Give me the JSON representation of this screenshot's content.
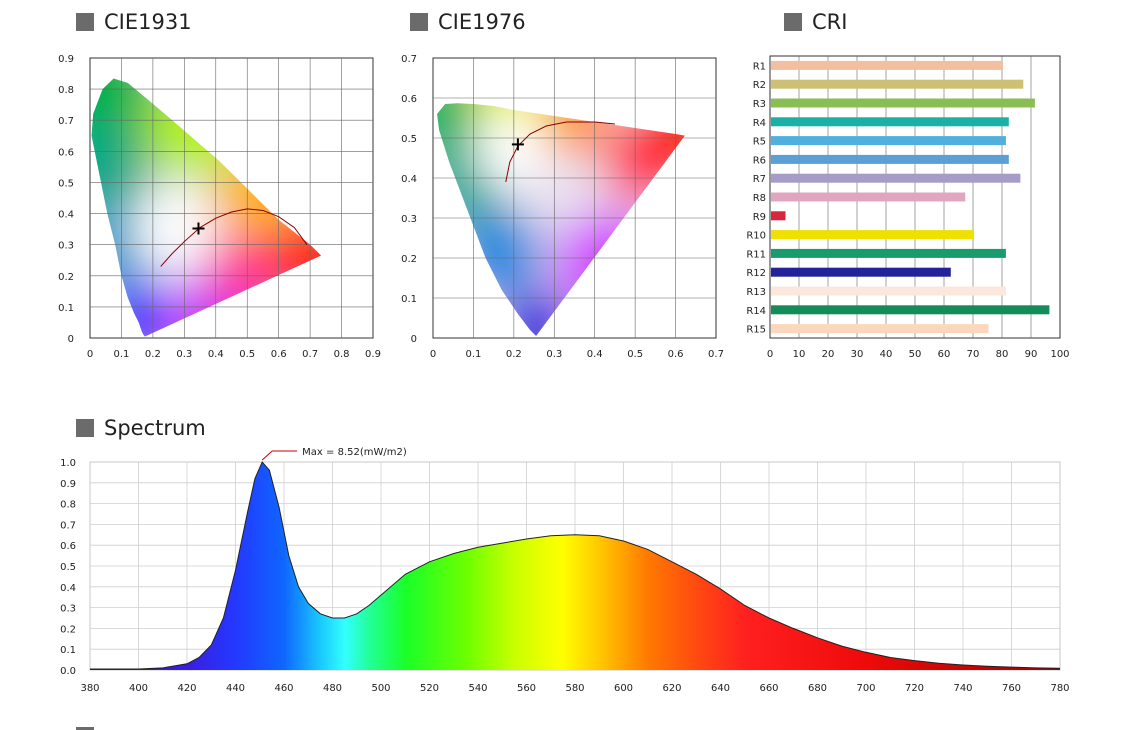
{
  "sections": {
    "cie1931": "CIE1931",
    "cie1976": "CIE1976",
    "cri": "CRI",
    "spectrum": "Spectrum"
  },
  "chart_data": [
    {
      "type": "scatter",
      "name": "CIE1931",
      "xlim": [
        0,
        0.9
      ],
      "ylim": [
        0,
        0.9
      ],
      "xticks": [
        "0",
        "0.1",
        "0.2",
        "0.3",
        "0.4",
        "0.5",
        "0.6",
        "0.7",
        "0.8",
        "0.9"
      ],
      "yticks": [
        "0",
        "0.1",
        "0.2",
        "0.3",
        "0.4",
        "0.5",
        "0.6",
        "0.7",
        "0.8",
        "0.9"
      ],
      "locus": [
        [
          0.175,
          0.005
        ],
        [
          0.17,
          0.01
        ],
        [
          0.165,
          0.02
        ],
        [
          0.155,
          0.05
        ],
        [
          0.14,
          0.08
        ],
        [
          0.12,
          0.13
        ],
        [
          0.1,
          0.2
        ],
        [
          0.08,
          0.3
        ],
        [
          0.055,
          0.4
        ],
        [
          0.035,
          0.5
        ],
        [
          0.015,
          0.6
        ],
        [
          0.005,
          0.65
        ],
        [
          0.01,
          0.72
        ],
        [
          0.04,
          0.8
        ],
        [
          0.075,
          0.834
        ],
        [
          0.12,
          0.82
        ],
        [
          0.18,
          0.77
        ],
        [
          0.25,
          0.71
        ],
        [
          0.33,
          0.64
        ],
        [
          0.41,
          0.57
        ],
        [
          0.5,
          0.48
        ],
        [
          0.6,
          0.38
        ],
        [
          0.7,
          0.3
        ],
        [
          0.735,
          0.265
        ]
      ],
      "planckian": [
        [
          0.225,
          0.23
        ],
        [
          0.26,
          0.27
        ],
        [
          0.3,
          0.31
        ],
        [
          0.35,
          0.355
        ],
        [
          0.4,
          0.385
        ],
        [
          0.45,
          0.405
        ],
        [
          0.5,
          0.415
        ],
        [
          0.55,
          0.41
        ],
        [
          0.6,
          0.39
        ],
        [
          0.65,
          0.355
        ],
        [
          0.69,
          0.3
        ]
      ],
      "point": {
        "x": 0.345,
        "y": 0.352
      }
    },
    {
      "type": "scatter",
      "name": "CIE1976",
      "xlim": [
        0,
        0.7
      ],
      "ylim": [
        0,
        0.7
      ],
      "xticks": [
        "0",
        "0.1",
        "0.2",
        "0.3",
        "0.4",
        "0.5",
        "0.6",
        "0.7"
      ],
      "yticks": [
        "0",
        "0.1",
        "0.2",
        "0.3",
        "0.4",
        "0.5",
        "0.6",
        "0.7"
      ],
      "locus": [
        [
          0.255,
          0.005
        ],
        [
          0.24,
          0.02
        ],
        [
          0.21,
          0.06
        ],
        [
          0.17,
          0.12
        ],
        [
          0.13,
          0.2
        ],
        [
          0.1,
          0.28
        ],
        [
          0.07,
          0.36
        ],
        [
          0.04,
          0.44
        ],
        [
          0.015,
          0.52
        ],
        [
          0.01,
          0.56
        ],
        [
          0.03,
          0.585
        ],
        [
          0.06,
          0.587
        ],
        [
          0.1,
          0.585
        ],
        [
          0.15,
          0.58
        ],
        [
          0.2,
          0.57
        ],
        [
          0.3,
          0.555
        ],
        [
          0.4,
          0.54
        ],
        [
          0.5,
          0.525
        ],
        [
          0.6,
          0.51
        ],
        [
          0.623,
          0.506
        ]
      ],
      "planckian": [
        [
          0.18,
          0.39
        ],
        [
          0.19,
          0.44
        ],
        [
          0.21,
          0.48
        ],
        [
          0.24,
          0.51
        ],
        [
          0.28,
          0.53
        ],
        [
          0.33,
          0.54
        ],
        [
          0.4,
          0.54
        ],
        [
          0.45,
          0.535
        ]
      ],
      "point": {
        "x": 0.21,
        "y": 0.484
      }
    },
    {
      "type": "bar",
      "name": "CRI",
      "orientation": "horizontal",
      "categories": [
        "R1",
        "R2",
        "R3",
        "R4",
        "R5",
        "R6",
        "R7",
        "R8",
        "R9",
        "R10",
        "R11",
        "R12",
        "R13",
        "R14",
        "R15"
      ],
      "values": [
        80,
        87,
        91,
        82,
        81,
        82,
        86,
        67,
        5,
        70,
        81,
        62,
        81,
        96,
        75
      ],
      "colors": [
        "#f2bfa1",
        "#cdbf73",
        "#8bbd55",
        "#1ab0a6",
        "#4fb0de",
        "#5a9fd6",
        "#a79bc8",
        "#e0a5c0",
        "#d9263d",
        "#f0e000",
        "#189c6e",
        "#22229a",
        "#fbe7dc",
        "#138c5a",
        "#fcd7bd"
      ],
      "xlim": [
        0,
        100
      ],
      "xticks": [
        "0",
        "10",
        "20",
        "30",
        "40",
        "50",
        "60",
        "70",
        "80",
        "90",
        "100"
      ]
    },
    {
      "type": "area",
      "name": "Spectrum",
      "xlim": [
        380,
        780
      ],
      "ylim": [
        0,
        1.0
      ],
      "xticks": [
        "380",
        "400",
        "420",
        "440",
        "460",
        "480",
        "500",
        "520",
        "540",
        "560",
        "580",
        "600",
        "620",
        "640",
        "660",
        "680",
        "700",
        "720",
        "740",
        "760",
        "780"
      ],
      "yticks": [
        "0.0",
        "0.1",
        "0.2",
        "0.3",
        "0.4",
        "0.5",
        "0.6",
        "0.7",
        "0.8",
        "0.9",
        "1.0"
      ],
      "annotation": "Max = 8.52(mW/m2)",
      "peak": {
        "x": 451,
        "y": 1.0
      },
      "x": [
        380,
        400,
        410,
        420,
        425,
        430,
        435,
        440,
        445,
        448,
        451,
        454,
        458,
        462,
        466,
        470,
        475,
        480,
        485,
        490,
        495,
        500,
        510,
        520,
        530,
        540,
        550,
        560,
        570,
        580,
        590,
        600,
        610,
        620,
        630,
        640,
        650,
        660,
        670,
        680,
        690,
        700,
        710,
        720,
        730,
        740,
        750,
        760,
        770,
        780
      ],
      "y": [
        0.005,
        0.005,
        0.01,
        0.03,
        0.06,
        0.12,
        0.25,
        0.48,
        0.76,
        0.92,
        1.0,
        0.96,
        0.78,
        0.55,
        0.4,
        0.32,
        0.27,
        0.25,
        0.25,
        0.27,
        0.31,
        0.36,
        0.46,
        0.52,
        0.56,
        0.59,
        0.61,
        0.63,
        0.645,
        0.65,
        0.645,
        0.62,
        0.58,
        0.52,
        0.46,
        0.39,
        0.31,
        0.25,
        0.2,
        0.155,
        0.115,
        0.085,
        0.06,
        0.045,
        0.032,
        0.024,
        0.018,
        0.014,
        0.01,
        0.008
      ]
    }
  ]
}
